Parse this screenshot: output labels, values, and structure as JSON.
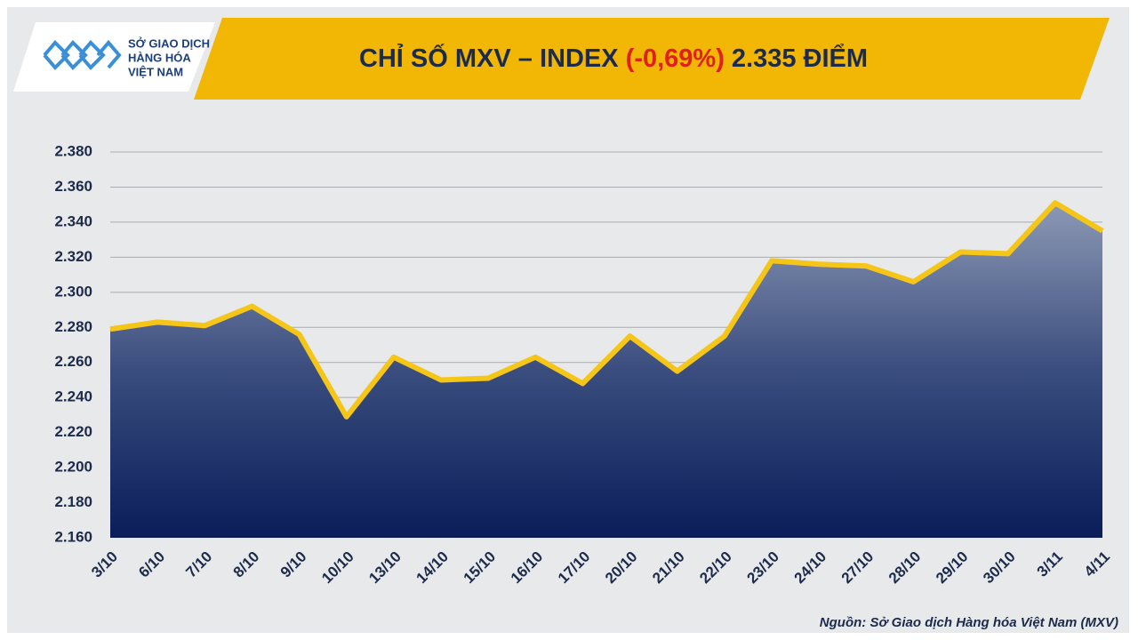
{
  "header": {
    "logo_lines": [
      "SỞ GIAO DỊCH",
      "HÀNG HÓA",
      "VIỆT NAM"
    ],
    "title": {
      "prefix": "CHỈ SỐ MXV – INDEX",
      "change": "(-0,69%)",
      "value": "2.335 ĐIỂM"
    }
  },
  "chart_data": {
    "type": "area-line",
    "categories": [
      "3/10",
      "6/10",
      "7/10",
      "8/10",
      "9/10",
      "10/10",
      "13/10",
      "14/10",
      "15/10",
      "16/10",
      "17/10",
      "20/10",
      "21/10",
      "22/10",
      "23/10",
      "24/10",
      "27/10",
      "28/10",
      "29/10",
      "30/10",
      "3/11",
      "4/11"
    ],
    "values": [
      2279,
      2283,
      2281,
      2292,
      2276,
      2229,
      2263,
      2250,
      2251,
      2263,
      2248,
      2275,
      2255,
      2275,
      2318,
      2316,
      2315,
      2306,
      2323,
      2322,
      2351,
      2335
    ],
    "color": "#f5c518",
    "ylim": [
      2160,
      2380
    ],
    "yticks": [
      {
        "value": 2160,
        "label": "2.160"
      },
      {
        "value": 2180,
        "label": "2.180"
      },
      {
        "value": 2200,
        "label": "2.200"
      },
      {
        "value": 2220,
        "label": "2.220"
      },
      {
        "value": 2240,
        "label": "2.240"
      },
      {
        "value": 2260,
        "label": "2.260"
      },
      {
        "value": 2280,
        "label": "2.280"
      },
      {
        "value": 2300,
        "label": "2.300"
      },
      {
        "value": 2320,
        "label": "2.320"
      },
      {
        "value": 2340,
        "label": "2.340"
      },
      {
        "value": 2360,
        "label": "2.360"
      },
      {
        "value": 2380,
        "label": "2.380"
      }
    ],
    "grid": true
  },
  "source": "Nguồn: Sở Giao dịch Hàng hóa Việt Nam (MXV)"
}
